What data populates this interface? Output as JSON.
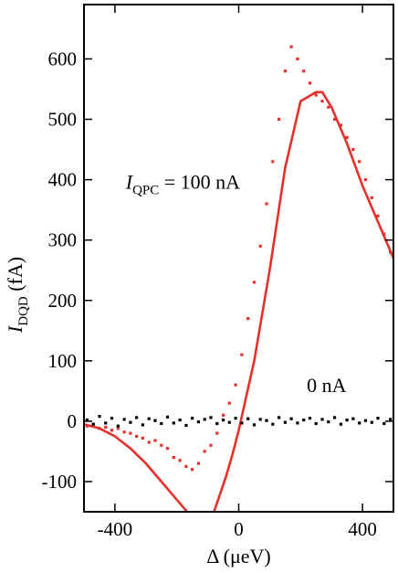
{
  "chart_data": {
    "type": "scatter",
    "title": "",
    "xlabel": "Δ (μeV)",
    "ylabel": {
      "main": "I",
      "sub": "DQD",
      "unit": " (fA)"
    },
    "xlim": [
      -500,
      500
    ],
    "ylim": [
      -150,
      690
    ],
    "x_ticks": [
      -400,
      0,
      400
    ],
    "y_ticks": [
      -100,
      0,
      100,
      200,
      300,
      400,
      500,
      600
    ],
    "grid": false,
    "annotations": [
      {
        "id": "qpc100",
        "main": "I",
        "sub": "QPC",
        "rest": " = 100 nA",
        "x": -365,
        "y": 385
      },
      {
        "id": "qpc0",
        "main": "0 nA",
        "sub": "",
        "rest": "",
        "x": 220,
        "y": 48
      }
    ],
    "series": [
      {
        "id": "data_100nA",
        "style": "points",
        "color": "#e8302a",
        "x": [
          -490,
          -470,
          -450,
          -430,
          -410,
          -390,
          -370,
          -350,
          -330,
          -310,
          -290,
          -270,
          -250,
          -230,
          -210,
          -190,
          -170,
          -150,
          -130,
          -110,
          -90,
          -70,
          -50,
          -30,
          -10,
          10,
          30,
          50,
          70,
          90,
          110,
          130,
          150,
          170,
          190,
          210,
          230,
          250,
          270,
          290,
          310,
          330,
          350,
          370,
          390,
          410,
          430,
          450,
          470,
          490
        ],
        "y": [
          -8,
          -5,
          -12,
          -10,
          -15,
          -12,
          -18,
          -20,
          -25,
          -28,
          -35,
          -32,
          -40,
          -45,
          -60,
          -65,
          -75,
          -80,
          -70,
          -50,
          -40,
          -20,
          10,
          30,
          60,
          110,
          170,
          230,
          290,
          360,
          430,
          500,
          580,
          620,
          600,
          580,
          560,
          540,
          530,
          520,
          500,
          490,
          470,
          450,
          430,
          400,
          370,
          340,
          310,
          280
        ]
      },
      {
        "id": "fit_100nA",
        "style": "line",
        "color": "#e8302a",
        "x": [
          -500,
          -450,
          -400,
          -350,
          -300,
          -250,
          -200,
          -150,
          -120,
          -100,
          -80,
          -60,
          -40,
          -20,
          0,
          50,
          100,
          150,
          200,
          250,
          270,
          300,
          350,
          400,
          450,
          500
        ],
        "y": [
          -5,
          -12,
          -25,
          -45,
          -70,
          -100,
          -130,
          -160,
          -180,
          -170,
          -150,
          -120,
          -90,
          -55,
          -15,
          100,
          250,
          420,
          530,
          545,
          545,
          520,
          460,
          390,
          330,
          270
        ]
      },
      {
        "id": "data_0nA",
        "style": "points",
        "color": "#000000",
        "x": [
          -490,
          -470,
          -450,
          -430,
          -410,
          -390,
          -370,
          -350,
          -330,
          -310,
          -290,
          -270,
          -250,
          -230,
          -210,
          -190,
          -170,
          -150,
          -130,
          -110,
          -90,
          -70,
          -50,
          -30,
          -10,
          10,
          30,
          50,
          70,
          90,
          110,
          130,
          150,
          170,
          190,
          210,
          230,
          250,
          270,
          290,
          310,
          330,
          350,
          370,
          390,
          410,
          430,
          450,
          470,
          490
        ],
        "y": [
          2,
          -5,
          8,
          -3,
          5,
          -8,
          3,
          -2,
          6,
          -6,
          4,
          1,
          -4,
          7,
          -3,
          2,
          -7,
          5,
          -1,
          3,
          6,
          -4,
          2,
          -2,
          5,
          -3,
          4,
          -6,
          3,
          1,
          -5,
          6,
          -2,
          4,
          -3,
          2,
          5,
          -4,
          3,
          -1,
          6,
          -5,
          2,
          4,
          -3,
          1,
          -2,
          5,
          -4,
          3
        ]
      }
    ]
  }
}
